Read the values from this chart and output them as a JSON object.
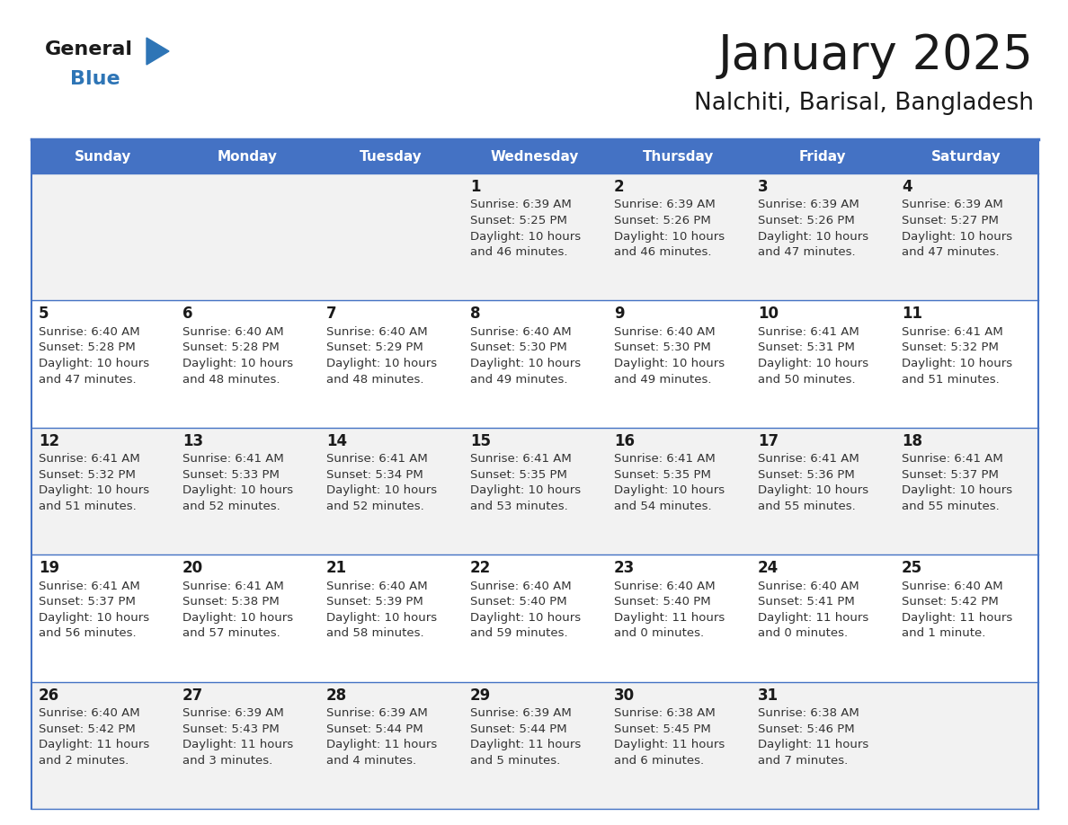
{
  "title": "January 2025",
  "subtitle": "Nalchiti, Barisal, Bangladesh",
  "header_color": "#4472C4",
  "header_text_color": "#FFFFFF",
  "cell_bg_even": "#F2F2F2",
  "cell_bg_odd": "#FFFFFF",
  "border_color": "#4472C4",
  "row_divider_color": "#4472C4",
  "day_names": [
    "Sunday",
    "Monday",
    "Tuesday",
    "Wednesday",
    "Thursday",
    "Friday",
    "Saturday"
  ],
  "title_color": "#1a1a1a",
  "subtitle_color": "#1a1a1a",
  "day_number_color": "#1a1a1a",
  "cell_text_color": "#333333",
  "logo_text_color": "#1a1a1a",
  "logo_blue_color": "#2E75B6",
  "days": [
    {
      "date": 1,
      "col": 3,
      "row": 0,
      "sunrise": "6:39 AM",
      "sunset": "5:25 PM",
      "daylight": "10 hours and 46 minutes."
    },
    {
      "date": 2,
      "col": 4,
      "row": 0,
      "sunrise": "6:39 AM",
      "sunset": "5:26 PM",
      "daylight": "10 hours and 46 minutes."
    },
    {
      "date": 3,
      "col": 5,
      "row": 0,
      "sunrise": "6:39 AM",
      "sunset": "5:26 PM",
      "daylight": "10 hours and 47 minutes."
    },
    {
      "date": 4,
      "col": 6,
      "row": 0,
      "sunrise": "6:39 AM",
      "sunset": "5:27 PM",
      "daylight": "10 hours and 47 minutes."
    },
    {
      "date": 5,
      "col": 0,
      "row": 1,
      "sunrise": "6:40 AM",
      "sunset": "5:28 PM",
      "daylight": "10 hours and 47 minutes."
    },
    {
      "date": 6,
      "col": 1,
      "row": 1,
      "sunrise": "6:40 AM",
      "sunset": "5:28 PM",
      "daylight": "10 hours and 48 minutes."
    },
    {
      "date": 7,
      "col": 2,
      "row": 1,
      "sunrise": "6:40 AM",
      "sunset": "5:29 PM",
      "daylight": "10 hours and 48 minutes."
    },
    {
      "date": 8,
      "col": 3,
      "row": 1,
      "sunrise": "6:40 AM",
      "sunset": "5:30 PM",
      "daylight": "10 hours and 49 minutes."
    },
    {
      "date": 9,
      "col": 4,
      "row": 1,
      "sunrise": "6:40 AM",
      "sunset": "5:30 PM",
      "daylight": "10 hours and 49 minutes."
    },
    {
      "date": 10,
      "col": 5,
      "row": 1,
      "sunrise": "6:41 AM",
      "sunset": "5:31 PM",
      "daylight": "10 hours and 50 minutes."
    },
    {
      "date": 11,
      "col": 6,
      "row": 1,
      "sunrise": "6:41 AM",
      "sunset": "5:32 PM",
      "daylight": "10 hours and 51 minutes."
    },
    {
      "date": 12,
      "col": 0,
      "row": 2,
      "sunrise": "6:41 AM",
      "sunset": "5:32 PM",
      "daylight": "10 hours and 51 minutes."
    },
    {
      "date": 13,
      "col": 1,
      "row": 2,
      "sunrise": "6:41 AM",
      "sunset": "5:33 PM",
      "daylight": "10 hours and 52 minutes."
    },
    {
      "date": 14,
      "col": 2,
      "row": 2,
      "sunrise": "6:41 AM",
      "sunset": "5:34 PM",
      "daylight": "10 hours and 52 minutes."
    },
    {
      "date": 15,
      "col": 3,
      "row": 2,
      "sunrise": "6:41 AM",
      "sunset": "5:35 PM",
      "daylight": "10 hours and 53 minutes."
    },
    {
      "date": 16,
      "col": 4,
      "row": 2,
      "sunrise": "6:41 AM",
      "sunset": "5:35 PM",
      "daylight": "10 hours and 54 minutes."
    },
    {
      "date": 17,
      "col": 5,
      "row": 2,
      "sunrise": "6:41 AM",
      "sunset": "5:36 PM",
      "daylight": "10 hours and 55 minutes."
    },
    {
      "date": 18,
      "col": 6,
      "row": 2,
      "sunrise": "6:41 AM",
      "sunset": "5:37 PM",
      "daylight": "10 hours and 55 minutes."
    },
    {
      "date": 19,
      "col": 0,
      "row": 3,
      "sunrise": "6:41 AM",
      "sunset": "5:37 PM",
      "daylight": "10 hours and 56 minutes."
    },
    {
      "date": 20,
      "col": 1,
      "row": 3,
      "sunrise": "6:41 AM",
      "sunset": "5:38 PM",
      "daylight": "10 hours and 57 minutes."
    },
    {
      "date": 21,
      "col": 2,
      "row": 3,
      "sunrise": "6:40 AM",
      "sunset": "5:39 PM",
      "daylight": "10 hours and 58 minutes."
    },
    {
      "date": 22,
      "col": 3,
      "row": 3,
      "sunrise": "6:40 AM",
      "sunset": "5:40 PM",
      "daylight": "10 hours and 59 minutes."
    },
    {
      "date": 23,
      "col": 4,
      "row": 3,
      "sunrise": "6:40 AM",
      "sunset": "5:40 PM",
      "daylight": "11 hours and 0 minutes."
    },
    {
      "date": 24,
      "col": 5,
      "row": 3,
      "sunrise": "6:40 AM",
      "sunset": "5:41 PM",
      "daylight": "11 hours and 0 minutes."
    },
    {
      "date": 25,
      "col": 6,
      "row": 3,
      "sunrise": "6:40 AM",
      "sunset": "5:42 PM",
      "daylight": "11 hours and 1 minute."
    },
    {
      "date": 26,
      "col": 0,
      "row": 4,
      "sunrise": "6:40 AM",
      "sunset": "5:42 PM",
      "daylight": "11 hours and 2 minutes."
    },
    {
      "date": 27,
      "col": 1,
      "row": 4,
      "sunrise": "6:39 AM",
      "sunset": "5:43 PM",
      "daylight": "11 hours and 3 minutes."
    },
    {
      "date": 28,
      "col": 2,
      "row": 4,
      "sunrise": "6:39 AM",
      "sunset": "5:44 PM",
      "daylight": "11 hours and 4 minutes."
    },
    {
      "date": 29,
      "col": 3,
      "row": 4,
      "sunrise": "6:39 AM",
      "sunset": "5:44 PM",
      "daylight": "11 hours and 5 minutes."
    },
    {
      "date": 30,
      "col": 4,
      "row": 4,
      "sunrise": "6:38 AM",
      "sunset": "5:45 PM",
      "daylight": "11 hours and 6 minutes."
    },
    {
      "date": 31,
      "col": 5,
      "row": 4,
      "sunrise": "6:38 AM",
      "sunset": "5:46 PM",
      "daylight": "11 hours and 7 minutes."
    }
  ]
}
